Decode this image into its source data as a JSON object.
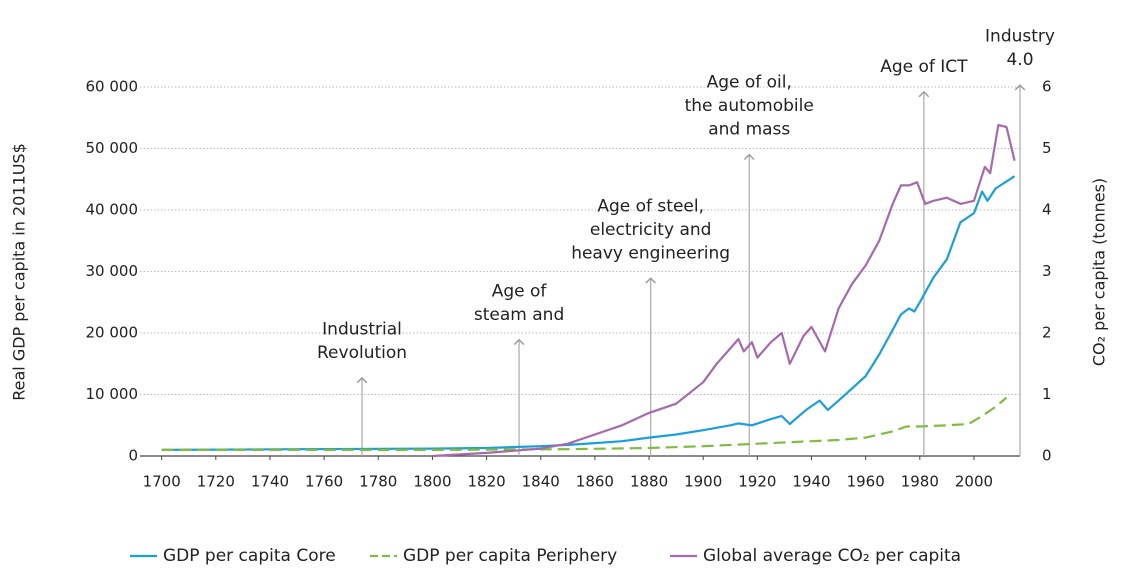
{
  "chart_data": {
    "type": "line",
    "y_label": "Real GDP per capita in 2011US$",
    "y2_label": "CO₂ per capita (tonnes)",
    "xlim": [
      1692,
      2017
    ],
    "xticks": [
      1700,
      1720,
      1740,
      1760,
      1780,
      1800,
      1820,
      1840,
      1860,
      1880,
      1900,
      1920,
      1940,
      1960,
      1980,
      2000
    ],
    "ylim": [
      0,
      60000
    ],
    "yticks": [
      0,
      {
        "value": 10000,
        "label": "10 000"
      },
      {
        "value": 20000,
        "label": "20 000"
      },
      {
        "value": 30000,
        "label": "30 000"
      },
      {
        "value": 40000,
        "label": "40 000"
      },
      {
        "value": 50000,
        "label": "50 000"
      },
      {
        "value": 60000,
        "label": "60 000"
      }
    ],
    "y2lim": [
      0,
      6
    ],
    "y2ticks": [
      0,
      1,
      2,
      3,
      4,
      5,
      6
    ],
    "grid": true,
    "legend": "bottom",
    "series": [
      {
        "name": "GDP per capita Core",
        "color": "#1b9fd9",
        "dash": false,
        "x": [
          1700,
          1750,
          1800,
          1820,
          1840,
          1850,
          1860,
          1870,
          1880,
          1890,
          1900,
          1910,
          1913,
          1918,
          1925,
          1929,
          1932,
          1938,
          1943,
          1946,
          1950,
          1955,
          1960,
          1965,
          1970,
          1973,
          1976,
          1978,
          1980,
          1985,
          1990,
          1995,
          2000,
          2003,
          2005,
          2008,
          2015
        ],
        "values": [
          1000,
          1100,
          1200,
          1300,
          1600,
          1800,
          2100,
          2400,
          3000,
          3500,
          4200,
          5000,
          5300,
          5000,
          6000,
          6500,
          5200,
          7500,
          9000,
          7500,
          9000,
          11000,
          13000,
          16500,
          20500,
          23000,
          24000,
          23500,
          25000,
          29000,
          32000,
          38000,
          39500,
          43000,
          41500,
          43500,
          45500
        ]
      },
      {
        "name": "GDP per capita Periphery",
        "color": "#7fbc41",
        "dash": true,
        "x": [
          1700,
          1800,
          1850,
          1880,
          1900,
          1920,
          1940,
          1950,
          1960,
          1970,
          1975,
          1980,
          1990,
          1998,
          2003,
          2008,
          2012
        ],
        "values": [
          1000,
          1000,
          1100,
          1300,
          1600,
          2000,
          2400,
          2600,
          3000,
          4000,
          4800,
          4800,
          5000,
          5200,
          6500,
          8000,
          9500
        ]
      },
      {
        "name": "Global average CO₂ per capita",
        "color": "#a569ac",
        "dash": false,
        "axis": "y2",
        "x": [
          1800,
          1820,
          1840,
          1850,
          1860,
          1870,
          1880,
          1890,
          1900,
          1905,
          1910,
          1913,
          1915,
          1918,
          1920,
          1925,
          1929,
          1932,
          1937,
          1940,
          1945,
          1950,
          1955,
          1960,
          1965,
          1970,
          1973,
          1976,
          1979,
          1982,
          1985,
          1990,
          1995,
          2000,
          2004,
          2006,
          2009,
          2012,
          2015
        ],
        "values": [
          0.0,
          0.05,
          0.12,
          0.2,
          0.35,
          0.5,
          0.7,
          0.85,
          1.2,
          1.5,
          1.75,
          1.9,
          1.7,
          1.85,
          1.6,
          1.85,
          2.0,
          1.5,
          1.95,
          2.1,
          1.7,
          2.4,
          2.8,
          3.1,
          3.5,
          4.1,
          4.4,
          4.4,
          4.45,
          4.1,
          4.15,
          4.2,
          4.1,
          4.15,
          4.7,
          4.6,
          5.38,
          5.35,
          4.8
        ]
      }
    ],
    "annotations": [
      {
        "x": 1774,
        "y": 12700,
        "label": [
          "Industrial",
          "Revolution"
        ]
      },
      {
        "x": 1832,
        "y": 18900,
        "label": [
          "Age of",
          "steam and"
        ]
      },
      {
        "x": 1880.6,
        "y": 28900,
        "label": [
          "Age of steel,",
          "electricity and",
          "heavy engineering"
        ]
      },
      {
        "x": 1917,
        "y": 49000,
        "label": [
          "Age of oil,",
          "the automobile",
          "and mass"
        ]
      },
      {
        "x": 1981.5,
        "y": 59200,
        "label": [
          "Age of ICT"
        ]
      },
      {
        "x": 2017,
        "y": 60300,
        "label": [
          "Industry",
          "4.0"
        ]
      }
    ]
  }
}
